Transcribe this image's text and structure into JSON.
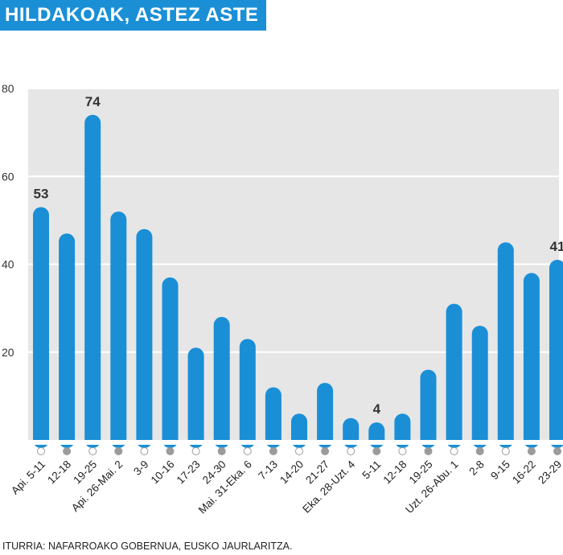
{
  "title": "HILDAKOAK, ASTEZ ASTE",
  "source": "ITURRIA: NAFARROAKO GOBERNUA, EUSKO JAURLARITZA.",
  "colors": {
    "bar": "#1a8fd6",
    "plot_background": "#e6e6e6",
    "title_background": "#1a8fd6",
    "gridline": "#ffffff",
    "marker_filled": "#9b9b9b",
    "marker_empty": "#ffffff"
  },
  "chart_data": {
    "type": "bar",
    "categories": [
      "Api. 5-11",
      "12-18",
      "19-25",
      "Api. 26-Mai. 2",
      "3-9",
      "10-16",
      "17-23",
      "24-30",
      "Mai. 31-Eka. 6",
      "7-13",
      "14-20",
      "21-27",
      "Eka. 28-Uzt. 4",
      "5-11",
      "12-18",
      "19-25",
      "Uzt. 26-Abu. 1",
      "2-8",
      "9-15",
      "16-22",
      "23-29"
    ],
    "values": [
      53,
      47,
      74,
      52,
      48,
      37,
      21,
      28,
      23,
      12,
      6,
      13,
      5,
      4,
      6,
      16,
      31,
      26,
      45,
      38,
      41
    ],
    "data_labels": [
      {
        "index": 0,
        "text": "53"
      },
      {
        "index": 2,
        "text": "74"
      },
      {
        "index": 13,
        "text": "4"
      },
      {
        "index": 20,
        "text": "41"
      }
    ],
    "markers": [
      "empty",
      "filled",
      "empty",
      "filled",
      "empty",
      "filled",
      "empty",
      "filled",
      "empty",
      "filled",
      "empty",
      "filled",
      "empty",
      "filled",
      "empty",
      "filled",
      "empty",
      "filled",
      "empty",
      "filled",
      "filled"
    ],
    "ylim": [
      0,
      80
    ],
    "yticks": [
      20,
      40,
      60,
      80
    ],
    "ytick_labels": [
      "20",
      "40",
      "60",
      "80"
    ],
    "grid": true,
    "xlabel": "",
    "ylabel": ""
  }
}
